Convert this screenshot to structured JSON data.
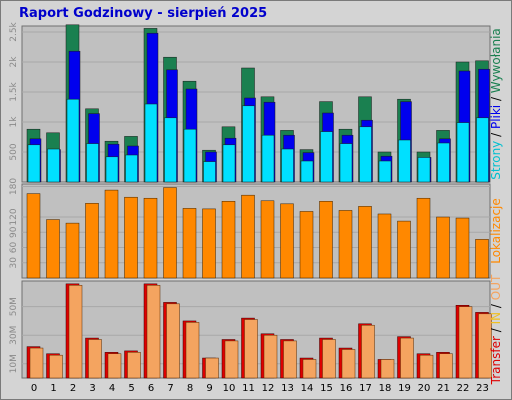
{
  "title": "Raport Godzinowy -   sierpień 2025",
  "hours": [
    "0",
    "1",
    "2",
    "3",
    "4",
    "5",
    "6",
    "7",
    "8",
    "9",
    "10",
    "11",
    "12",
    "13",
    "14",
    "15",
    "16",
    "17",
    "18",
    "19",
    "20",
    "21",
    "22",
    "23"
  ],
  "colors": {
    "title": "#0000cc",
    "background": "#d4d4d4",
    "plot": "#c0c0c0",
    "grid": "#a8a8a8",
    "strony": "#1a8050",
    "pliki": "#0000ee",
    "wywolania": "#00e0ff",
    "lokalizacje": "#ff8800",
    "transfer_in": "#dd0000",
    "transfer_out": "#f4a460"
  },
  "chart_data": [
    {
      "type": "bar",
      "panel": "top",
      "categories": [
        "0",
        "1",
        "2",
        "3",
        "4",
        "5",
        "6",
        "7",
        "8",
        "9",
        "10",
        "11",
        "12",
        "13",
        "14",
        "15",
        "16",
        "17",
        "18",
        "19",
        "20",
        "21",
        "22",
        "23"
      ],
      "ylim": [
        0,
        2600
      ],
      "yticks": [
        "500",
        "1k",
        "1.5k",
        "2k",
        "2.5k"
      ],
      "ytick_values": [
        500,
        1000,
        1500,
        2000,
        2500
      ],
      "legend": {
        "position": "right",
        "parts": [
          {
            "text": "Strony",
            "color": "#00c0d0"
          },
          {
            "text": " / ",
            "color": "#000000"
          },
          {
            "text": "Pliki",
            "color": "#0000ee"
          },
          {
            "text": " / ",
            "color": "#000000"
          },
          {
            "text": "Wywołania",
            "color": "#1a8050"
          }
        ]
      },
      "series": [
        {
          "name": "Wywołania",
          "color": "#1a8050",
          "values": [
            880,
            820,
            2620,
            1220,
            680,
            760,
            2560,
            2080,
            1680,
            530,
            920,
            1900,
            1420,
            860,
            540,
            1340,
            880,
            1420,
            500,
            1380,
            500,
            860,
            2000,
            2020
          ]
        },
        {
          "name": "Pliki",
          "color": "#0000ee",
          "values": [
            720,
            540,
            2180,
            1140,
            630,
            600,
            2480,
            1870,
            1550,
            500,
            730,
            1400,
            1330,
            780,
            490,
            1150,
            780,
            1030,
            430,
            1340,
            410,
            720,
            1850,
            1880
          ]
        },
        {
          "name": "Strony",
          "color": "#00e0ff",
          "values": [
            620,
            550,
            1380,
            640,
            420,
            450,
            1300,
            1070,
            880,
            340,
            620,
            1270,
            780,
            550,
            350,
            840,
            640,
            920,
            350,
            700,
            410,
            650,
            990,
            1070
          ]
        }
      ]
    },
    {
      "type": "bar",
      "panel": "middle",
      "categories": [
        "0",
        "1",
        "2",
        "3",
        "4",
        "5",
        "6",
        "7",
        "8",
        "9",
        "10",
        "11",
        "12",
        "13",
        "14",
        "15",
        "16",
        "17",
        "18",
        "19",
        "20",
        "21",
        "22",
        "23"
      ],
      "ylim": [
        0,
        185
      ],
      "yticks": [
        "30",
        "60",
        "90",
        "120",
        "180"
      ],
      "ytick_values": [
        30,
        60,
        90,
        120,
        180
      ],
      "legend": {
        "position": "right",
        "parts": [
          {
            "text": "Lokalizacje",
            "color": "#ff8800"
          }
        ]
      },
      "series": [
        {
          "name": "Lokalizacje",
          "color": "#ff8800",
          "values": [
            166,
            115,
            108,
            147,
            173,
            159,
            157,
            178,
            137,
            136,
            151,
            163,
            152,
            146,
            131,
            151,
            133,
            141,
            126,
            112,
            157,
            120,
            118,
            76
          ]
        }
      ]
    },
    {
      "type": "bar",
      "panel": "bottom",
      "categories": [
        "0",
        "1",
        "2",
        "3",
        "4",
        "5",
        "6",
        "7",
        "8",
        "9",
        "10",
        "11",
        "12",
        "13",
        "14",
        "15",
        "16",
        "17",
        "18",
        "19",
        "20",
        "21",
        "22",
        "23"
      ],
      "ylim": [
        0,
        68
      ],
      "yticks": [
        "10M",
        "30M",
        "50M"
      ],
      "ytick_values": [
        10,
        30,
        50
      ],
      "unit": "MB",
      "legend": {
        "position": "right",
        "parts": [
          {
            "text": "Transfer",
            "color": "#dd0000"
          },
          {
            "text": " / ",
            "color": "#000000"
          },
          {
            "text": "IN",
            "color": "#f0c020"
          },
          {
            "text": " / ",
            "color": "#000000"
          },
          {
            "text": "OUT",
            "color": "#f4a460"
          }
        ]
      },
      "series": [
        {
          "name": "Transfer",
          "color": "#dd0000",
          "values": [
            22,
            17,
            66,
            28,
            18,
            19,
            66,
            53,
            40,
            14,
            27,
            42,
            31,
            27,
            14,
            28,
            21,
            38,
            13,
            29,
            17,
            18,
            51,
            46
          ]
        },
        {
          "name": "OUT",
          "color": "#f4a460",
          "values": [
            21,
            16,
            65,
            27,
            17,
            18,
            65,
            52,
            39,
            14,
            26,
            41,
            30,
            26,
            13,
            27,
            20,
            37,
            13,
            28,
            16,
            17,
            50,
            45
          ]
        }
      ]
    }
  ]
}
